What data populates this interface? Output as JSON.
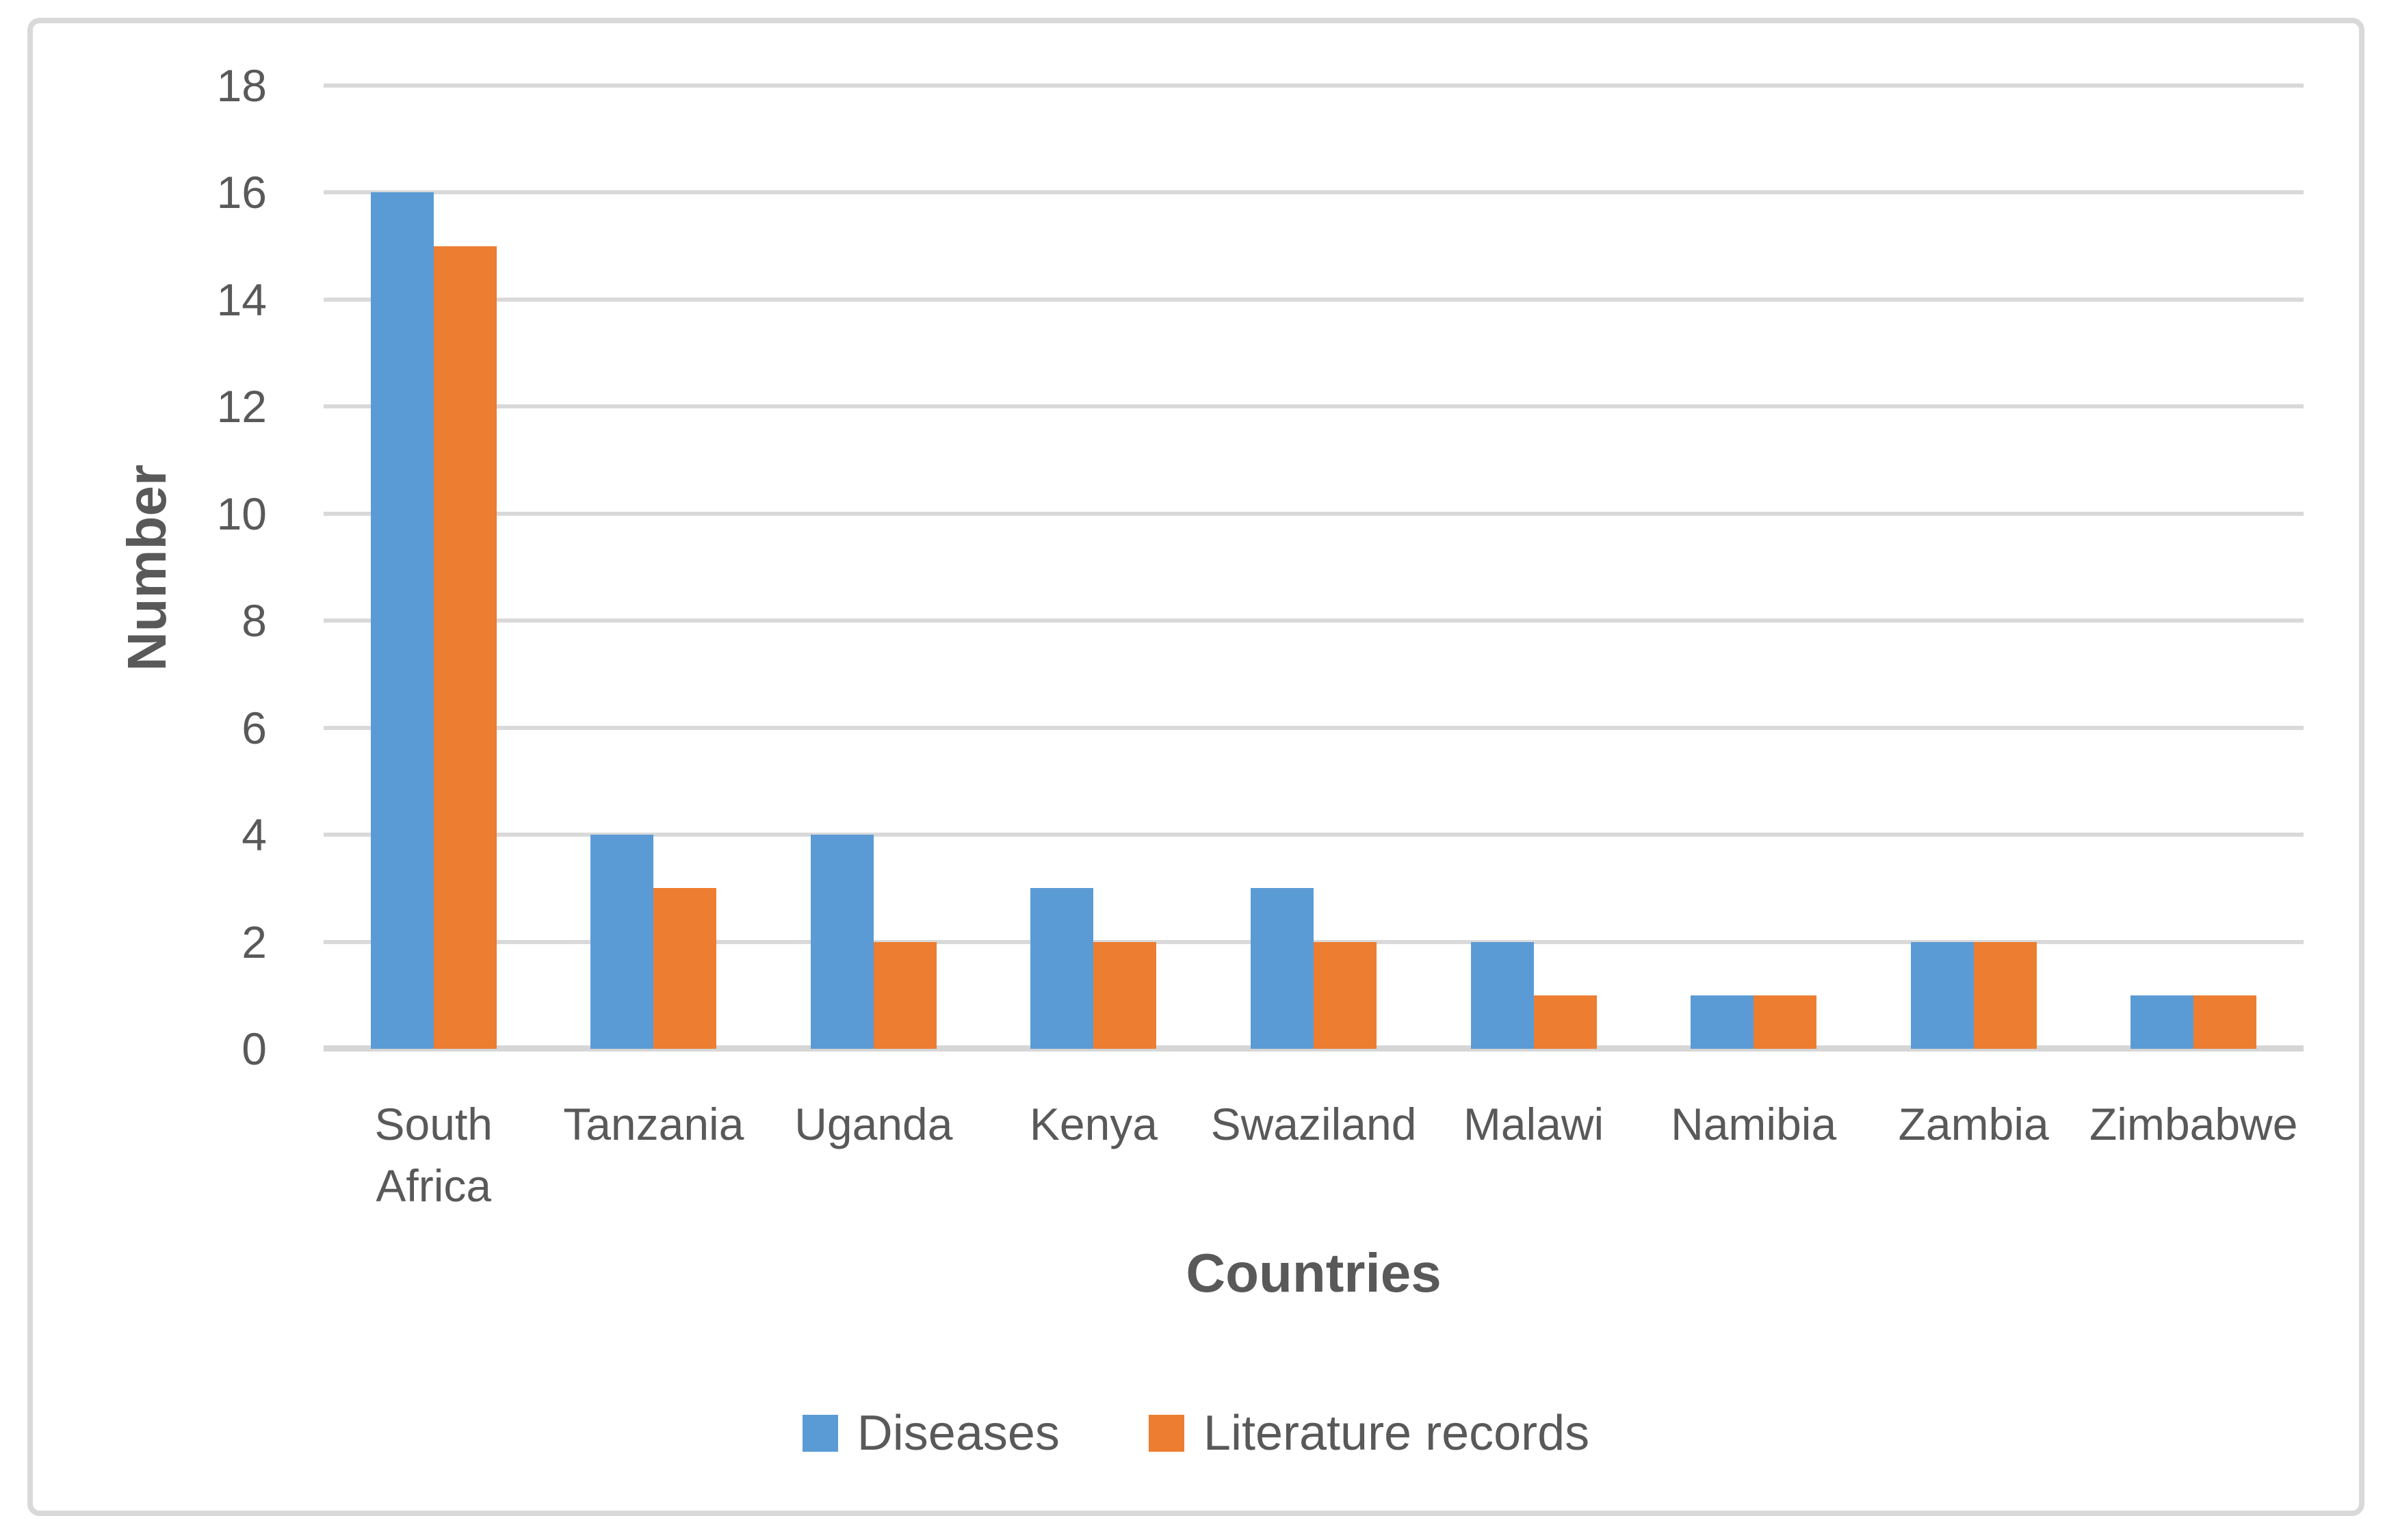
{
  "chart_data": {
    "type": "bar",
    "title": "",
    "categories": [
      "South Africa",
      "Tanzania",
      "Uganda",
      "Kenya",
      "Swaziland",
      "Malawi",
      "Namibia",
      "Zambia",
      "Zimbabwe"
    ],
    "series": [
      {
        "name": "Diseases",
        "color": "#5B9BD5",
        "values": [
          16,
          4,
          4,
          3,
          3,
          2,
          1,
          2,
          1
        ]
      },
      {
        "name": "Literature records",
        "color": "#ED7D31",
        "values": [
          15,
          3,
          2,
          2,
          2,
          1,
          1,
          2,
          1
        ]
      }
    ],
    "xlabel": "Countries",
    "ylabel": "Number",
    "ylim": [
      0,
      18
    ],
    "ytick_step": 2,
    "grid": true,
    "legend_position": "bottom"
  },
  "style": {
    "series_blue": "#5B9BD5",
    "series_orange": "#ED7D31",
    "grid_color": "#D9D9D9",
    "axis_line_color": "#D6D6D6",
    "text_color": "#595959",
    "frame_color": "#D9D9D9",
    "background": "#FFFFFF"
  }
}
